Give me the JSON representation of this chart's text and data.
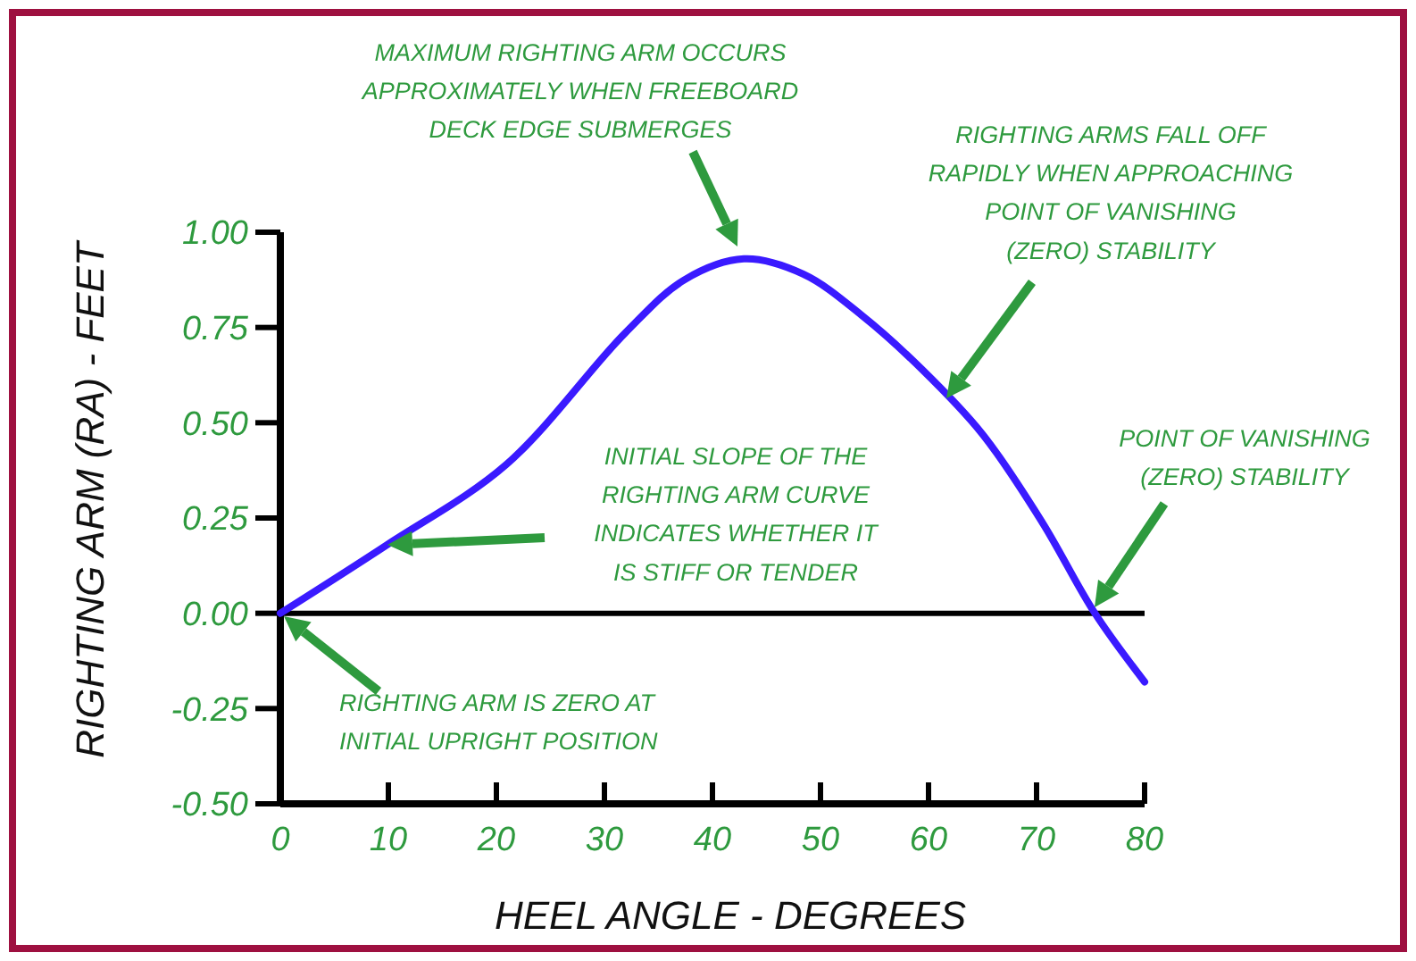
{
  "chart_data": {
    "type": "line",
    "xlabel": "HEEL ANGLE - DEGREES",
    "ylabel": "RIGHTING ARM (RA) - FEET",
    "x": [
      0,
      9.9,
      20.9,
      31.9,
      37.4,
      42.9,
      48.4,
      53.9,
      59.4,
      65,
      70.5,
      75.4,
      80
    ],
    "series": [
      {
        "color": "#3a1aff",
        "values": [
          0,
          0.18,
          0.39,
          0.735,
          0.875,
          0.93,
          0.89,
          0.78,
          0.64,
          0.47,
          0.24,
          0,
          -0.18
        ]
      }
    ],
    "xlim": [
      0,
      80
    ],
    "ylim": [
      -0.5,
      1.0
    ],
    "xticks": [
      0,
      10,
      20,
      30,
      40,
      50,
      60,
      70,
      80
    ],
    "yticks": [
      {
        "value": 1,
        "label": "1.00"
      },
      {
        "value": 0.75,
        "label": "0.75"
      },
      {
        "value": 0.5,
        "label": "0.50"
      },
      {
        "value": 0.25,
        "label": "0.25"
      },
      {
        "value": 0,
        "label": "0.00"
      },
      {
        "value": -0.25,
        "label": "-0.25"
      },
      {
        "value": -0.5,
        "label": "-0.50"
      }
    ],
    "ref_lines": [
      {
        "axis": "y",
        "value": 0,
        "color": "#000000"
      }
    ],
    "grid": false,
    "marker": "none",
    "line_style": "solid",
    "annotations": [
      "MAXIMUM RIGHTING ARM OCCURS\nAPPROXIMATELY WHEN FREEBOARD\nDECK EDGE SUBMERGES",
      "RIGHTING ARMS FALL OFF\nRAPIDLY WHEN APPROACHING\nPOINT OF VANISHING\n(ZERO) STABILITY",
      "POINT OF VANISHING\n(ZERO) STABILITY",
      "INITIAL SLOPE OF THE\nRIGHTING ARM CURVE\nINDICATES WHETHER IT\nIS STIFF OR TENDER",
      "RIGHTING ARM IS ZERO AT\nINITIAL UPRIGHT POSITION"
    ]
  }
}
